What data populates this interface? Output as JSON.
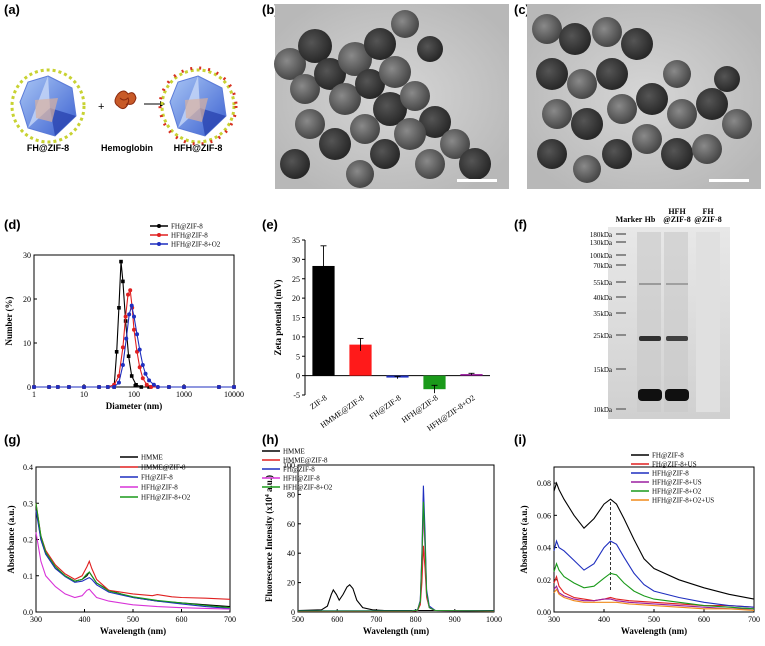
{
  "panels": {
    "a": {
      "label": "(a)",
      "left_caption": "FH@ZIF-8",
      "mid_caption": "Hemoglobin",
      "right_caption": "HFH@ZIF-8",
      "plus": "+"
    },
    "b": {
      "label": "(b)"
    },
    "c": {
      "label": "(c)"
    },
    "d": {
      "label": "(d)"
    },
    "e": {
      "label": "(e)"
    },
    "f": {
      "label": "(f)",
      "lanes": [
        "Marker",
        "Hb",
        "HFH\n@ZIF-8",
        "FH\n@ZIF-8"
      ],
      "markers": [
        "180kDa",
        "130kDa",
        "100kDa",
        "70kDa",
        "55kDa",
        "40kDa",
        "35kDa",
        "25kDa",
        "15kDa",
        "10kDa"
      ]
    },
    "g": {
      "label": "(g)"
    },
    "h": {
      "label": "(h)"
    },
    "i": {
      "label": "(i)"
    }
  },
  "chart_data": [
    {
      "id": "d",
      "type": "line",
      "xscale": "log",
      "xlim": [
        1,
        10000
      ],
      "ylim": [
        0,
        30
      ],
      "xticks": [
        "1",
        "10",
        "100",
        "1000",
        "10000"
      ],
      "yticks": [
        0,
        10,
        20,
        30
      ],
      "xlabel": "Diameter (nm)",
      "ylabel": "Number (%)",
      "series": [
        {
          "name": "FH@ZIF-8",
          "color": "#000000",
          "marker": "square",
          "x": [
            1,
            2,
            3,
            5,
            10,
            20,
            30,
            40,
            45,
            50,
            55,
            60,
            68,
            78,
            90,
            110,
            140,
            200,
            500,
            1000,
            5000,
            10000
          ],
          "y": [
            0,
            0,
            0,
            0,
            0,
            0,
            0,
            0,
            8,
            18,
            28.5,
            24,
            15,
            7,
            2.5,
            0.5,
            0,
            0,
            0,
            0,
            0,
            0
          ]
        },
        {
          "name": "HFH@ZIF-8",
          "color": "#e02020",
          "marker": "circle",
          "x": [
            1,
            2,
            3,
            5,
            10,
            20,
            30,
            40,
            50,
            60,
            68,
            76,
            84,
            92,
            100,
            115,
            130,
            150,
            180,
            220,
            300,
            500,
            1000,
            5000,
            10000
          ],
          "y": [
            0,
            0,
            0,
            0,
            0,
            0,
            0,
            0.5,
            2.5,
            9,
            16,
            21,
            22,
            18,
            13,
            8,
            4.5,
            2,
            0.5,
            0,
            0,
            0,
            0,
            0,
            0
          ]
        },
        {
          "name": "HFH@ZIF-8+O2",
          "color": "#1f2fbf",
          "marker": "circle",
          "x": [
            1,
            2,
            3,
            5,
            10,
            20,
            30,
            40,
            50,
            60,
            70,
            80,
            90,
            100,
            115,
            130,
            150,
            170,
            200,
            250,
            300,
            500,
            1000,
            5000,
            10000
          ],
          "y": [
            0,
            0,
            0,
            0,
            0,
            0,
            0,
            0,
            1,
            5,
            11,
            16.5,
            18.5,
            16,
            12,
            8.5,
            5,
            3,
            1.5,
            0.5,
            0,
            0,
            0,
            0,
            0
          ]
        }
      ]
    },
    {
      "id": "e",
      "type": "bar",
      "ylim": [
        -5,
        35
      ],
      "yticks": [
        -5,
        0,
        5,
        10,
        15,
        20,
        25,
        30,
        35
      ],
      "ylabel": "Zeta potential (mV)",
      "categories": [
        "ZIF-8",
        "HMME@ZIF-8",
        "FH@ZIF-8",
        "HFH@ZIF-8",
        "HFH@ZIF-8+O2"
      ],
      "values": [
        28.3,
        8.0,
        -0.5,
        -3.5,
        0.4
      ],
      "errors": [
        5.2,
        1.6,
        0.3,
        1.0,
        0.2
      ],
      "colors": [
        "#000000",
        "#ff1a1a",
        "#1f2fbf",
        "#1a9a1a",
        "#9b1ea0"
      ]
    },
    {
      "id": "g",
      "type": "line",
      "xlim": [
        300,
        700
      ],
      "ylim": [
        0,
        0.4
      ],
      "xticks": [
        300,
        400,
        500,
        600,
        700
      ],
      "yticks": [
        "0.0",
        "0.1",
        "0.2",
        "0.3",
        "0.4"
      ],
      "xlabel": "Wavelength (nm)",
      "ylabel": "Absorbance (a.u.)",
      "series": [
        {
          "name": "HMME",
          "color": "#000000",
          "x": [
            300,
            310,
            320,
            340,
            360,
            380,
            395,
            405,
            410,
            415,
            425,
            450,
            500,
            550,
            600,
            650,
            700
          ],
          "y": [
            0.29,
            0.2,
            0.16,
            0.12,
            0.1,
            0.085,
            0.09,
            0.1,
            0.11,
            0.1,
            0.08,
            0.06,
            0.04,
            0.03,
            0.025,
            0.02,
            0.015
          ]
        },
        {
          "name": "HMME@ZIF-8",
          "color": "#e02020",
          "x": [
            300,
            310,
            320,
            340,
            360,
            380,
            395,
            405,
            410,
            415,
            425,
            450,
            500,
            540,
            550,
            580,
            600,
            650,
            700
          ],
          "y": [
            0.3,
            0.21,
            0.17,
            0.13,
            0.105,
            0.09,
            0.1,
            0.125,
            0.14,
            0.12,
            0.09,
            0.06,
            0.05,
            0.045,
            0.048,
            0.042,
            0.04,
            0.038,
            0.035
          ]
        },
        {
          "name": "FH@ZIF-8",
          "color": "#1f2fbf",
          "x": [
            300,
            310,
            320,
            340,
            360,
            380,
            395,
            405,
            410,
            415,
            425,
            450,
            500,
            550,
            600,
            650,
            700
          ],
          "y": [
            0.28,
            0.2,
            0.16,
            0.12,
            0.098,
            0.082,
            0.085,
            0.092,
            0.095,
            0.09,
            0.075,
            0.055,
            0.04,
            0.03,
            0.022,
            0.015,
            0.01
          ]
        },
        {
          "name": "HFH@ZIF-8",
          "color": "#d833d8",
          "x": [
            300,
            310,
            320,
            340,
            360,
            380,
            395,
            405,
            410,
            415,
            425,
            450,
            500,
            550,
            600,
            650,
            700
          ],
          "y": [
            0.22,
            0.14,
            0.1,
            0.07,
            0.05,
            0.04,
            0.045,
            0.06,
            0.063,
            0.055,
            0.04,
            0.03,
            0.02,
            0.015,
            0.012,
            0.01,
            0.008
          ]
        },
        {
          "name": "HFH@ZIF-8+O2",
          "color": "#1a9a1a",
          "x": [
            300,
            310,
            320,
            340,
            360,
            380,
            395,
            405,
            410,
            415,
            425,
            450,
            500,
            550,
            600,
            650,
            700
          ],
          "y": [
            0.3,
            0.21,
            0.165,
            0.125,
            0.1,
            0.085,
            0.09,
            0.105,
            0.11,
            0.1,
            0.08,
            0.058,
            0.042,
            0.032,
            0.025,
            0.018,
            0.012
          ]
        }
      ]
    },
    {
      "id": "h",
      "type": "line",
      "xlim": [
        500,
        1000
      ],
      "ylim": [
        0,
        100
      ],
      "xticks": [
        500,
        600,
        700,
        800,
        900,
        1000
      ],
      "yticks": [
        0,
        20,
        40,
        60,
        80,
        100
      ],
      "xlabel": "Wavelength (nm)",
      "ylabel": "Fluorescence Intensity (x10",
      "ylabel_sup": "4",
      "ylabel_tail": " a.u.)",
      "series": [
        {
          "name": "HMME",
          "color": "#000000",
          "x": [
            500,
            560,
            575,
            585,
            590,
            598,
            605,
            615,
            625,
            632,
            640,
            650,
            665,
            690,
            720,
            800,
            1000
          ],
          "y": [
            1,
            1.5,
            4,
            12,
            15,
            12,
            8,
            12,
            17,
            18.5,
            16,
            8,
            3,
            1.5,
            1,
            1,
            1
          ]
        },
        {
          "name": "HMME@ZIF-8",
          "color": "#e02020",
          "x": [
            500,
            790,
            805,
            812,
            816,
            820,
            824,
            828,
            835,
            850,
            1000
          ],
          "y": [
            0.5,
            0.5,
            1,
            5,
            20,
            45,
            30,
            10,
            3,
            1,
            0.5
          ]
        },
        {
          "name": "FH@ZIF-8",
          "color": "#1f2fbf",
          "x": [
            500,
            790,
            805,
            812,
            816,
            820,
            824,
            828,
            835,
            850,
            1000
          ],
          "y": [
            0.8,
            0.8,
            1.5,
            8,
            40,
            86,
            55,
            15,
            4,
            1,
            0.8
          ]
        },
        {
          "name": "HFH@ZIF-8",
          "color": "#d833d8",
          "x": [
            500,
            790,
            805,
            812,
            816,
            820,
            824,
            828,
            835,
            850,
            1000
          ],
          "y": [
            0.6,
            0.6,
            1.2,
            7,
            35,
            66,
            44,
            12,
            3,
            1,
            0.6
          ]
        },
        {
          "name": "HFH@ZIF-8+O2",
          "color": "#1a9a1a",
          "x": [
            500,
            790,
            805,
            812,
            816,
            820,
            824,
            828,
            835,
            850,
            1000
          ],
          "y": [
            0.7,
            0.7,
            1.3,
            7,
            36,
            75,
            48,
            13,
            3,
            1,
            0.7
          ]
        }
      ]
    },
    {
      "id": "i",
      "type": "line",
      "xlim": [
        300,
        700
      ],
      "ylim": [
        0,
        0.09
      ],
      "xticks": [
        300,
        400,
        500,
        600,
        700
      ],
      "yticks": [
        "0.00",
        "0.02",
        "0.04",
        "0.06",
        "0.08"
      ],
      "xlabel": "Wavelength (nm)",
      "ylabel": "Absorbance (a.u.)",
      "vline": 413,
      "series": [
        {
          "name": "FH@ZIF-8",
          "color": "#000000",
          "x": [
            300,
            305,
            310,
            320,
            340,
            360,
            380,
            400,
            413,
            425,
            440,
            460,
            480,
            500,
            550,
            600,
            650,
            700
          ],
          "y": [
            0.075,
            0.08,
            0.076,
            0.07,
            0.06,
            0.052,
            0.058,
            0.067,
            0.07,
            0.067,
            0.058,
            0.045,
            0.033,
            0.027,
            0.02,
            0.015,
            0.011,
            0.008
          ]
        },
        {
          "name": "FH@ZIF-8+US",
          "color": "#e02020",
          "x": [
            300,
            305,
            310,
            320,
            340,
            360,
            380,
            400,
            413,
            425,
            450,
            500,
            550,
            600,
            650,
            700
          ],
          "y": [
            0.018,
            0.022,
            0.016,
            0.012,
            0.009,
            0.008,
            0.007,
            0.008,
            0.009,
            0.008,
            0.007,
            0.006,
            0.005,
            0.004,
            0.004,
            0.003
          ]
        },
        {
          "name": "HFH@ZIF-8",
          "color": "#1f2fbf",
          "x": [
            300,
            305,
            310,
            320,
            340,
            360,
            380,
            400,
            413,
            425,
            440,
            460,
            480,
            500,
            550,
            600,
            650,
            700
          ],
          "y": [
            0.038,
            0.044,
            0.04,
            0.038,
            0.032,
            0.026,
            0.03,
            0.04,
            0.044,
            0.042,
            0.034,
            0.024,
            0.017,
            0.013,
            0.009,
            0.006,
            0.004,
            0.003
          ]
        },
        {
          "name": "HFH@ZIF-8+US",
          "color": "#9b1ea0",
          "x": [
            300,
            305,
            310,
            320,
            340,
            360,
            380,
            400,
            413,
            425,
            450,
            500,
            550,
            600,
            650,
            700
          ],
          "y": [
            0.014,
            0.016,
            0.012,
            0.01,
            0.008,
            0.007,
            0.007,
            0.008,
            0.008,
            0.007,
            0.006,
            0.005,
            0.004,
            0.003,
            0.002,
            0.002
          ]
        },
        {
          "name": "HFH@ZIF-8+O2",
          "color": "#1a9a1a",
          "x": [
            300,
            305,
            310,
            320,
            340,
            360,
            380,
            400,
            413,
            425,
            440,
            460,
            480,
            500,
            550,
            600,
            650,
            700
          ],
          "y": [
            0.025,
            0.03,
            0.026,
            0.022,
            0.018,
            0.015,
            0.016,
            0.021,
            0.024,
            0.023,
            0.018,
            0.013,
            0.01,
            0.008,
            0.006,
            0.004,
            0.003,
            0.002
          ]
        },
        {
          "name": "HFH@ZIF-8+O2+US",
          "color": "#f08a1a",
          "x": [
            300,
            305,
            310,
            320,
            340,
            360,
            380,
            400,
            413,
            425,
            450,
            500,
            550,
            600,
            650,
            700
          ],
          "y": [
            0.012,
            0.014,
            0.011,
            0.009,
            0.007,
            0.006,
            0.006,
            0.006,
            0.006,
            0.006,
            0.005,
            0.004,
            0.003,
            0.002,
            0.002,
            0.001
          ]
        }
      ]
    }
  ]
}
